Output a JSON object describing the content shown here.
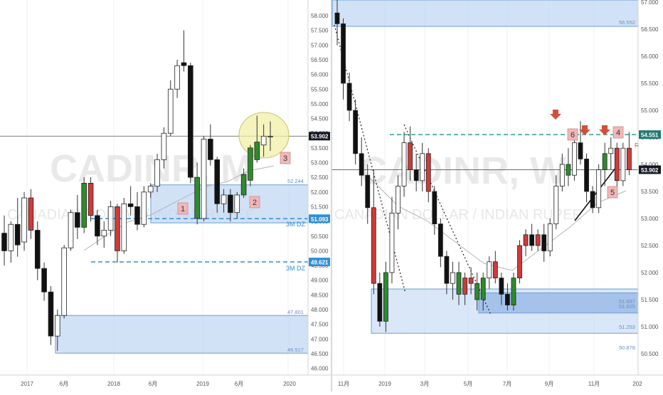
{
  "colors": {
    "up": "#2e8b2e",
    "down": "#d03a3a",
    "neutral_body": "#ffffff",
    "wick": "#333333",
    "zone_fill": "#b9d3f2",
    "zone_fill_dark": "#8fb2e6",
    "zone_border": "#6a9fd8",
    "dashed_blue": "#2f8fd8",
    "teal": "#2a9d8f",
    "price_tag": "#131722",
    "blue_tag": "#2f8fd8",
    "teal_tag": "#1f7a6e",
    "label_box": "#f2b7b7",
    "arrow": "#d0503a",
    "highlight": "#f3f0a8",
    "watermark": "#d8d8d8"
  },
  "watermark": {
    "ticker": "CADINR, M",
    "ticker_right": "CADINR, W",
    "subtitle_left": "CANADIAN DOLLAR / INDIAN RUPEE",
    "subtitle_right": "CANADIAN DOLLAR / INDIAN RUPEE"
  },
  "chart_data": [
    {
      "type": "candlestick",
      "panel": "left",
      "timeframe": "monthly",
      "ylim": [
        45.7,
        58.5
      ],
      "y_ticks": [
        "58.000",
        "57.500",
        "57.000",
        "56.500",
        "56.000",
        "55.500",
        "55.000",
        "54.500",
        "54.000",
        "53.500",
        "53.000",
        "52.500",
        "52.000",
        "51.500",
        "51.000",
        "50.500",
        "50.000",
        "49.500",
        "49.000",
        "48.500",
        "48.000",
        "47.500",
        "47.000",
        "46.500",
        "46.000"
      ],
      "x_ticks": [
        "2017",
        "6月",
        "2018",
        "6月",
        "2019",
        "6月",
        "2020"
      ],
      "price_tags": [
        {
          "text": "53.902",
          "value": 53.902,
          "style": "dark"
        },
        {
          "text": "51.093",
          "value": 51.093,
          "style": "blue"
        },
        {
          "text": "49.621",
          "value": 49.621,
          "style": "blue"
        }
      ],
      "zone_labels": [
        "52.244",
        "47.801",
        "46.517"
      ],
      "level_labels": [
        "3M DZ",
        "3M DZ"
      ],
      "box_labels": [
        "1",
        "2",
        "3"
      ],
      "zones": [
        {
          "top": 52.244,
          "bottom": 50.95
        },
        {
          "top": 47.801,
          "bottom": 46.517
        }
      ],
      "dashed_levels": [
        51.093,
        49.621
      ],
      "current_price": 53.902,
      "candles": [
        {
          "o": 50.6,
          "h": 51.2,
          "l": 49.5,
          "c": 50.0
        },
        {
          "o": 50.0,
          "h": 51.0,
          "l": 49.6,
          "c": 50.9
        },
        {
          "o": 50.9,
          "h": 51.8,
          "l": 49.8,
          "c": 50.2
        },
        {
          "o": 50.3,
          "h": 52.0,
          "l": 50.0,
          "c": 51.8
        },
        {
          "o": 51.8,
          "h": 52.1,
          "l": 50.4,
          "c": 50.7
        },
        {
          "o": 50.7,
          "h": 51.0,
          "l": 49.0,
          "c": 49.4
        },
        {
          "o": 49.4,
          "h": 49.6,
          "l": 48.3,
          "c": 48.6
        },
        {
          "o": 48.6,
          "h": 48.8,
          "l": 46.8,
          "c": 47.1
        },
        {
          "o": 47.1,
          "h": 48.0,
          "l": 46.6,
          "c": 47.8
        },
        {
          "o": 47.8,
          "h": 50.2,
          "l": 47.7,
          "c": 50.1
        },
        {
          "o": 50.1,
          "h": 51.4,
          "l": 50.0,
          "c": 51.3
        },
        {
          "o": 51.3,
          "h": 51.9,
          "l": 50.4,
          "c": 50.8
        },
        {
          "o": 50.8,
          "h": 52.5,
          "l": 50.6,
          "c": 52.3
        },
        {
          "o": 52.3,
          "h": 52.5,
          "l": 51.0,
          "c": 51.2
        },
        {
          "o": 51.2,
          "h": 51.4,
          "l": 50.2,
          "c": 50.5
        },
        {
          "o": 50.5,
          "h": 51.0,
          "l": 50.1,
          "c": 50.7
        },
        {
          "o": 50.7,
          "h": 51.7,
          "l": 50.5,
          "c": 51.5
        },
        {
          "o": 51.5,
          "h": 51.6,
          "l": 49.6,
          "c": 50.0
        },
        {
          "o": 50.0,
          "h": 51.8,
          "l": 49.9,
          "c": 51.6
        },
        {
          "o": 51.6,
          "h": 52.2,
          "l": 51.2,
          "c": 51.5
        },
        {
          "o": 51.5,
          "h": 52.0,
          "l": 50.7,
          "c": 50.9
        },
        {
          "o": 50.9,
          "h": 52.2,
          "l": 50.8,
          "c": 52.0
        },
        {
          "o": 52.0,
          "h": 52.3,
          "l": 51.8,
          "c": 52.2
        },
        {
          "o": 52.2,
          "h": 53.3,
          "l": 52.0,
          "c": 53.1
        },
        {
          "o": 53.1,
          "h": 54.2,
          "l": 52.8,
          "c": 54.0
        },
        {
          "o": 54.0,
          "h": 55.8,
          "l": 53.9,
          "c": 55.5
        },
        {
          "o": 55.5,
          "h": 56.5,
          "l": 55.2,
          "c": 56.3
        },
        {
          "o": 56.4,
          "h": 57.5,
          "l": 56.1,
          "c": 56.3
        },
        {
          "o": 56.3,
          "h": 56.4,
          "l": 52.3,
          "c": 52.5
        },
        {
          "o": 52.5,
          "h": 53.0,
          "l": 50.9,
          "c": 51.1
        },
        {
          "o": 51.1,
          "h": 53.9,
          "l": 51.0,
          "c": 53.8
        },
        {
          "o": 53.8,
          "h": 54.3,
          "l": 52.9,
          "c": 53.1
        },
        {
          "o": 53.1,
          "h": 53.2,
          "l": 51.3,
          "c": 51.6
        },
        {
          "o": 51.6,
          "h": 52.1,
          "l": 51.3,
          "c": 51.9
        },
        {
          "o": 51.9,
          "h": 52.1,
          "l": 51.0,
          "c": 51.3
        },
        {
          "o": 51.3,
          "h": 52.0,
          "l": 51.1,
          "c": 51.9
        },
        {
          "o": 51.9,
          "h": 52.8,
          "l": 51.8,
          "c": 52.6
        },
        {
          "o": 52.4,
          "h": 53.6,
          "l": 52.2,
          "c": 53.5
        },
        {
          "o": 53.1,
          "h": 54.6,
          "l": 53.0,
          "c": 53.7
        },
        {
          "o": 53.6,
          "h": 54.3,
          "l": 53.2,
          "c": 53.9
        },
        {
          "o": 53.9,
          "h": 54.4,
          "l": 53.4,
          "c": 53.9
        }
      ]
    },
    {
      "type": "candlestick",
      "panel": "right",
      "timeframe": "weekly",
      "ylim": [
        50.4,
        57.1
      ],
      "y_ticks": [
        "57.000",
        "56.500",
        "56.000",
        "55.500",
        "55.000",
        "54.500",
        "54.000",
        "53.500",
        "53.000",
        "52.500",
        "52.000",
        "51.500",
        "51.000",
        "50.500"
      ],
      "x_ticks": [
        "11月",
        "2019",
        "3月",
        "5月",
        "7月",
        "9月",
        "11月",
        "202"
      ],
      "price_tags": [
        {
          "text": "54.551",
          "value": 54.551,
          "style": "teal"
        },
        {
          "text": "53.902",
          "value": 53.902,
          "style": "dark"
        }
      ],
      "zone_labels": [
        "56.552",
        "51.697",
        "51.625",
        "51.253",
        "50.878"
      ],
      "box_labels": [
        "6",
        "4",
        "5"
      ],
      "edge_label": "R",
      "zones": [
        {
          "top": 57.1,
          "bottom": 56.552,
          "style": "light"
        },
        {
          "top": 51.697,
          "bottom": 50.878,
          "style": "light"
        },
        {
          "top": 51.625,
          "bottom": 51.253,
          "style": "dark"
        }
      ],
      "dashed_levels": [
        54.551
      ],
      "current_price": 53.902,
      "candles": [
        {
          "o": 56.8,
          "h": 57.3,
          "l": 56.2,
          "c": 56.6
        },
        {
          "o": 56.6,
          "h": 56.7,
          "l": 55.2,
          "c": 55.5
        },
        {
          "o": 55.5,
          "h": 55.7,
          "l": 54.8,
          "c": 55.0
        },
        {
          "o": 55.0,
          "h": 55.2,
          "l": 54.0,
          "c": 54.2
        },
        {
          "o": 54.2,
          "h": 54.5,
          "l": 53.6,
          "c": 53.8
        },
        {
          "o": 53.8,
          "h": 54.0,
          "l": 52.9,
          "c": 53.2
        },
        {
          "o": 53.2,
          "h": 53.9,
          "l": 51.6,
          "c": 51.8
        },
        {
          "o": 51.8,
          "h": 52.0,
          "l": 51.0,
          "c": 51.1
        },
        {
          "o": 51.1,
          "h": 52.2,
          "l": 50.9,
          "c": 52.0
        },
        {
          "o": 52.0,
          "h": 53.4,
          "l": 51.8,
          "c": 53.1
        },
        {
          "o": 53.1,
          "h": 53.8,
          "l": 52.8,
          "c": 53.6
        },
        {
          "o": 53.6,
          "h": 54.6,
          "l": 53.4,
          "c": 54.4
        },
        {
          "o": 54.4,
          "h": 54.7,
          "l": 53.7,
          "c": 53.9
        },
        {
          "o": 53.9,
          "h": 54.2,
          "l": 53.5,
          "c": 53.7
        },
        {
          "o": 53.7,
          "h": 54.4,
          "l": 53.5,
          "c": 54.2
        },
        {
          "o": 54.2,
          "h": 54.3,
          "l": 53.3,
          "c": 53.5
        },
        {
          "o": 53.5,
          "h": 53.6,
          "l": 52.7,
          "c": 52.9
        },
        {
          "o": 52.9,
          "h": 53.0,
          "l": 52.1,
          "c": 52.3
        },
        {
          "o": 52.3,
          "h": 52.4,
          "l": 51.6,
          "c": 51.8
        },
        {
          "o": 51.8,
          "h": 52.2,
          "l": 51.5,
          "c": 52.0
        },
        {
          "o": 52.0,
          "h": 52.2,
          "l": 51.4,
          "c": 51.6
        },
        {
          "o": 51.6,
          "h": 52.0,
          "l": 51.4,
          "c": 51.9
        },
        {
          "o": 51.9,
          "h": 52.1,
          "l": 51.6,
          "c": 51.8
        },
        {
          "o": 51.8,
          "h": 52.0,
          "l": 51.3,
          "c": 51.5
        },
        {
          "o": 51.5,
          "h": 52.0,
          "l": 51.3,
          "c": 51.9
        },
        {
          "o": 51.9,
          "h": 52.3,
          "l": 51.7,
          "c": 52.2
        },
        {
          "o": 52.2,
          "h": 52.4,
          "l": 51.8,
          "c": 51.9
        },
        {
          "o": 51.9,
          "h": 52.0,
          "l": 51.4,
          "c": 51.6
        },
        {
          "o": 51.6,
          "h": 51.8,
          "l": 51.3,
          "c": 51.4
        },
        {
          "o": 51.4,
          "h": 52.0,
          "l": 51.3,
          "c": 51.9
        },
        {
          "o": 51.9,
          "h": 52.6,
          "l": 51.8,
          "c": 52.5
        },
        {
          "o": 52.5,
          "h": 52.8,
          "l": 52.3,
          "c": 52.7
        },
        {
          "o": 52.7,
          "h": 52.9,
          "l": 52.4,
          "c": 52.5
        },
        {
          "o": 52.5,
          "h": 52.8,
          "l": 52.4,
          "c": 52.7
        },
        {
          "o": 52.7,
          "h": 52.9,
          "l": 52.2,
          "c": 52.4
        },
        {
          "o": 52.4,
          "h": 53.0,
          "l": 52.3,
          "c": 52.9
        },
        {
          "o": 52.9,
          "h": 53.8,
          "l": 52.8,
          "c": 53.6
        },
        {
          "o": 53.6,
          "h": 54.2,
          "l": 53.5,
          "c": 54.0
        },
        {
          "o": 54.0,
          "h": 54.3,
          "l": 53.6,
          "c": 53.8
        },
        {
          "o": 53.8,
          "h": 54.5,
          "l": 53.7,
          "c": 54.4
        },
        {
          "o": 54.4,
          "h": 54.8,
          "l": 54.0,
          "c": 54.1
        },
        {
          "o": 54.1,
          "h": 54.2,
          "l": 53.3,
          "c": 53.5
        },
        {
          "o": 53.5,
          "h": 53.6,
          "l": 53.1,
          "c": 53.2
        },
        {
          "o": 53.2,
          "h": 54.0,
          "l": 53.1,
          "c": 53.9
        },
        {
          "o": 53.9,
          "h": 54.4,
          "l": 53.6,
          "c": 54.2
        },
        {
          "o": 54.2,
          "h": 54.5,
          "l": 53.9,
          "c": 54.3
        },
        {
          "o": 54.3,
          "h": 54.4,
          "l": 53.5,
          "c": 53.7
        },
        {
          "o": 53.7,
          "h": 54.4,
          "l": 53.6,
          "c": 54.3
        },
        {
          "o": 54.3,
          "h": 54.6,
          "l": 53.8,
          "c": 53.9
        }
      ]
    }
  ]
}
